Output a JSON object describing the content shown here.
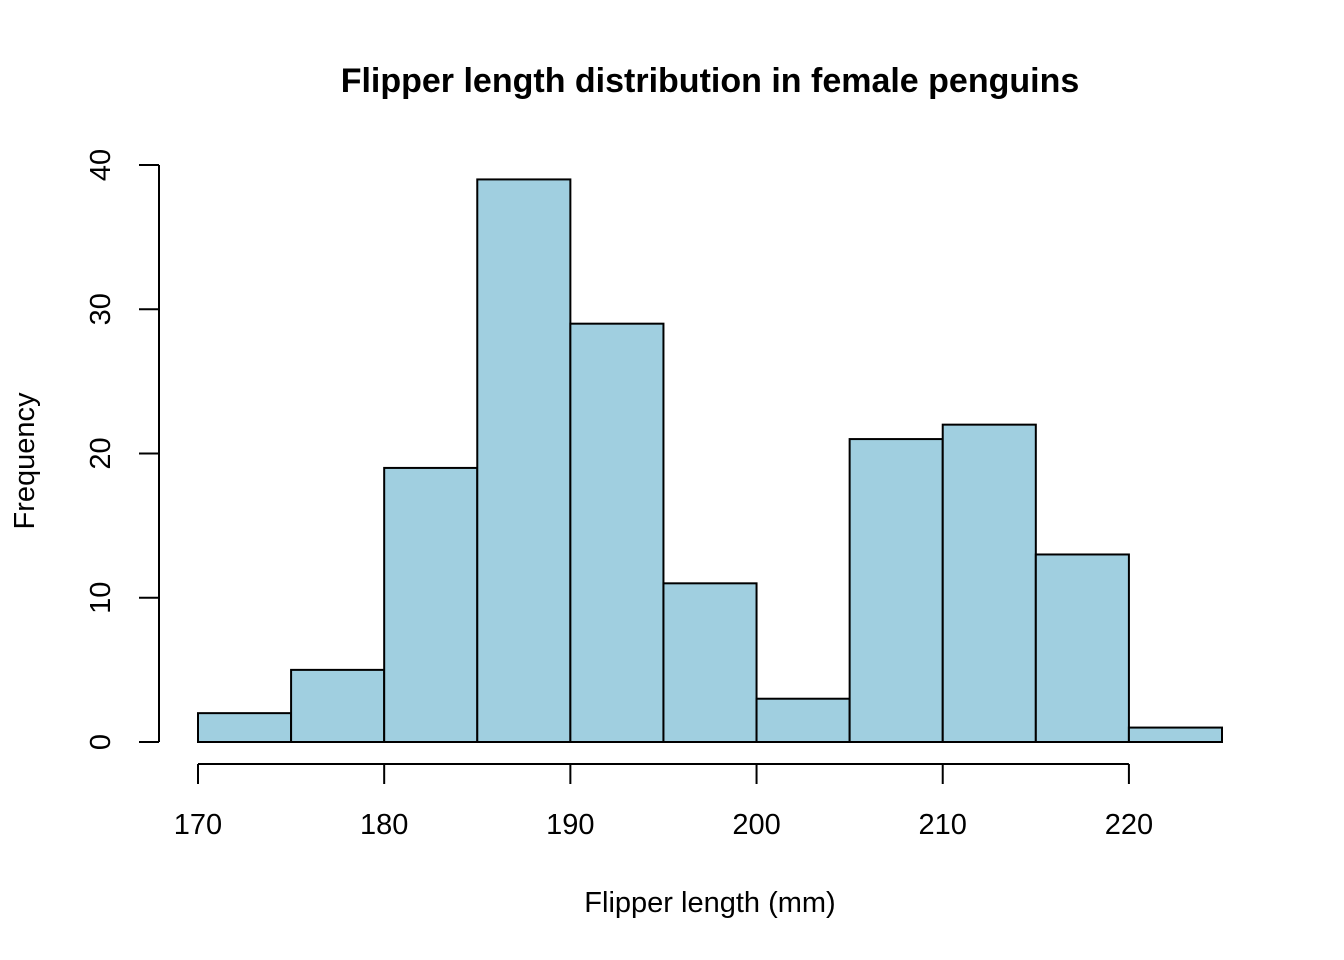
{
  "chart_data": {
    "type": "bar",
    "title": "Flipper length distribution in female penguins",
    "xlabel": "Flipper length (mm)",
    "ylabel": "Frequency",
    "bin_edges": [
      170,
      175,
      180,
      185,
      190,
      195,
      200,
      205,
      210,
      215,
      220,
      225
    ],
    "values": [
      2,
      5,
      19,
      39,
      29,
      11,
      3,
      21,
      22,
      13,
      1
    ],
    "xlim": [
      170,
      225
    ],
    "ylim": [
      0,
      40
    ],
    "x_ticks": [
      170,
      180,
      190,
      200,
      210,
      220
    ],
    "y_ticks": [
      0,
      10,
      20,
      30,
      40
    ],
    "bar_color": "#A0CFE0",
    "grid": false,
    "legend": "none"
  }
}
